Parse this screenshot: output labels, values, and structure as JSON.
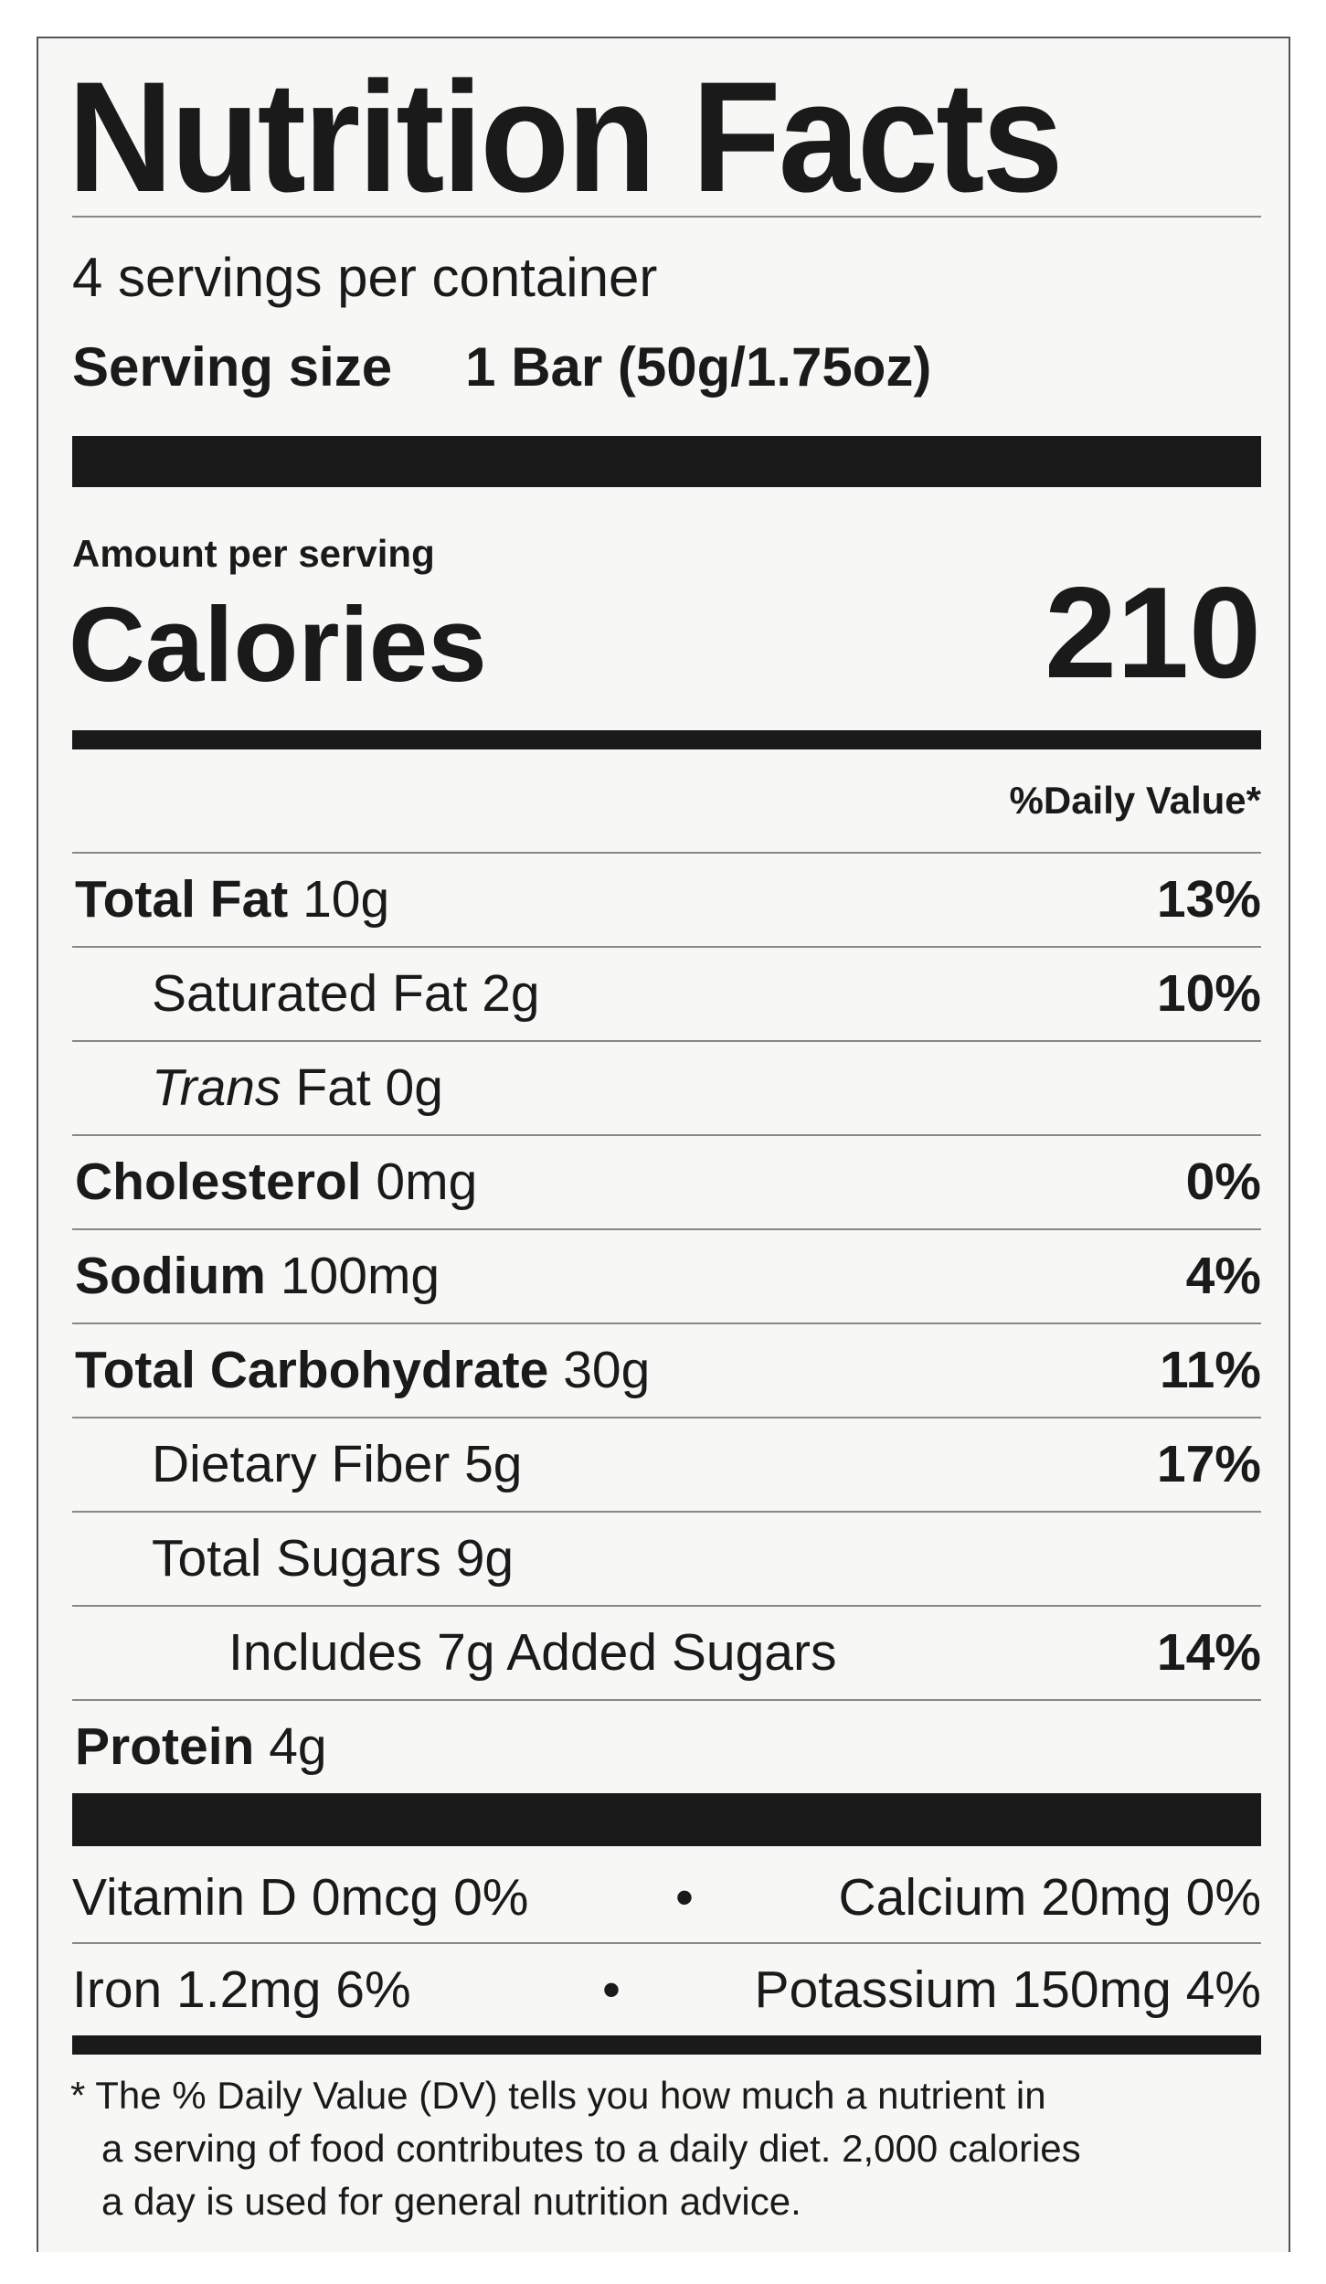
{
  "title": "Nutrition Facts",
  "servings_per_container": "4 servings per container",
  "serving_size_label": "Serving size",
  "serving_size_value": "1 Bar (50g/1.75oz)",
  "amount_per_serving": "Amount per serving",
  "calories_label": "Calories",
  "calories_value": "210",
  "daily_value_header": "%Daily Value*",
  "nutrients": [
    {
      "name": "Total Fat",
      "amount": "10g",
      "dv": "13%"
    },
    {
      "name": "Saturated Fat",
      "amount": "2g",
      "dv": "10%"
    },
    {
      "name": "Trans",
      "name_rest": "Fat",
      "amount": "0g",
      "dv": ""
    },
    {
      "name": "Cholesterol",
      "amount": "0mg",
      "dv": "0%"
    },
    {
      "name": "Sodium",
      "amount": "100mg",
      "dv": "4%"
    },
    {
      "name": "Total Carbohydrate",
      "amount": "30g",
      "dv": "11%"
    },
    {
      "name": "Dietary Fiber",
      "amount": "5g",
      "dv": "17%"
    },
    {
      "name": "Total Sugars",
      "amount": "9g",
      "dv": ""
    },
    {
      "name": "Includes 7g Added Sugars",
      "amount": "",
      "dv": "14%"
    },
    {
      "name": "Protein",
      "amount": "4g",
      "dv": ""
    }
  ],
  "vitamins": [
    {
      "left": "Vitamin D 0mcg 0%",
      "sep": "•",
      "right": "Calcium 20mg 0%"
    },
    {
      "left": "Iron 1.2mg 6%",
      "sep": "•",
      "right": "Potassium 150mg 4%"
    }
  ],
  "footnote": [
    "* The % Daily Value (DV) tells you how much a nutrient in",
    "a serving of food contributes to a daily diet. 2,000 calories",
    "a day is used for general nutrition advice."
  ]
}
